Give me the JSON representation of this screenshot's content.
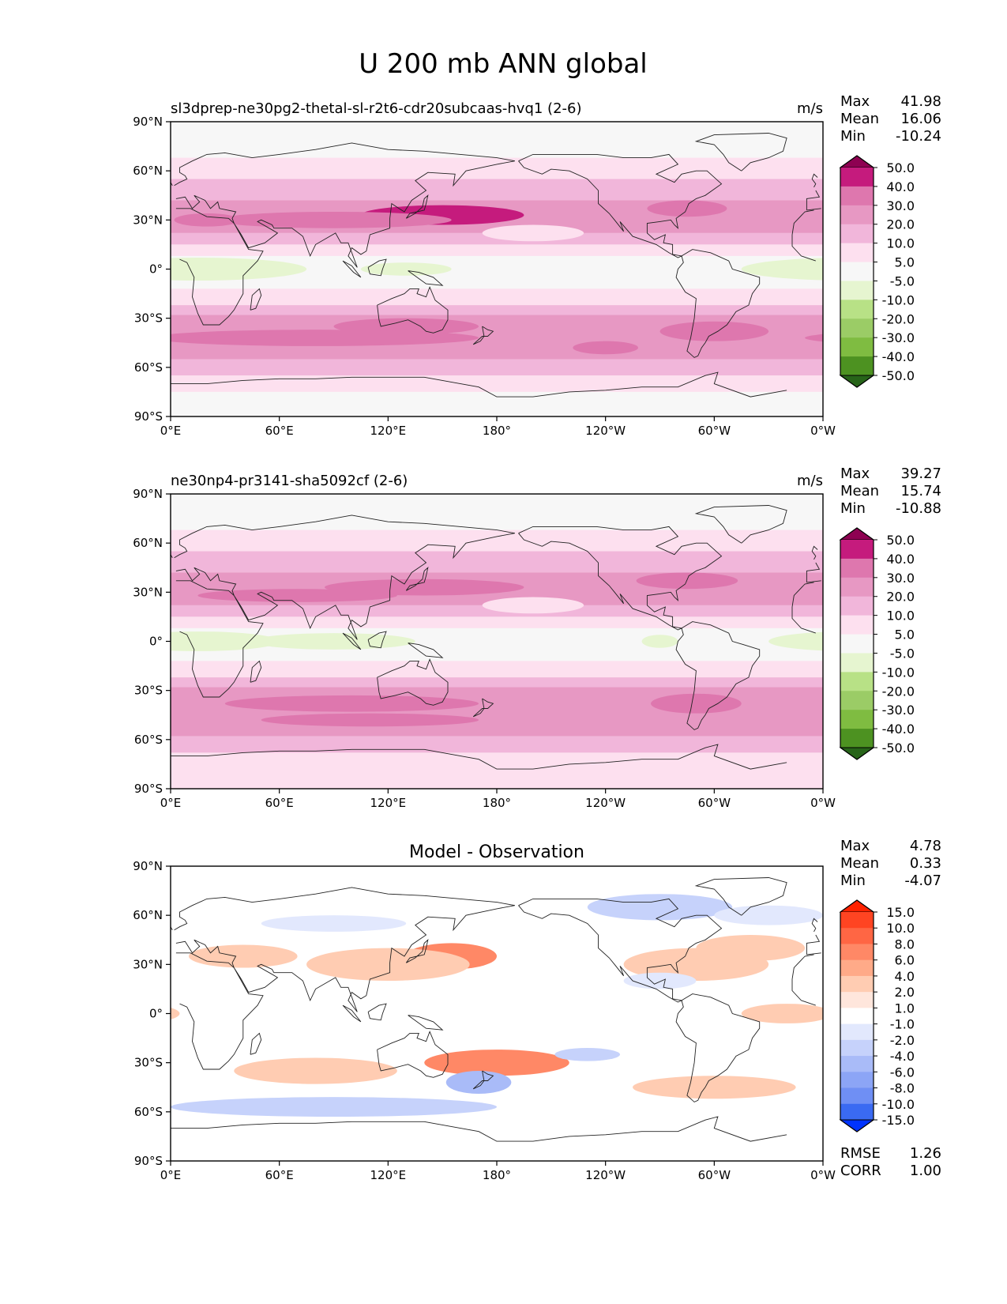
{
  "figure_title": "U 200 mb ANN global",
  "chart_data": [
    {
      "type": "heatmap",
      "title": "sl3dprep-ne30pg2-thetal-sl-r2t6-cdr20subcaas-hvq1 (2-6)",
      "units": "m/s",
      "stats": {
        "max_label": "Max",
        "max": "41.98",
        "mean_label": "Mean",
        "mean": "16.06",
        "min_label": "Min",
        "min": "-10.24"
      },
      "x_ticks": [
        "0°E",
        "60°E",
        "120°E",
        "180°",
        "120°W",
        "60°W",
        "0°W"
      ],
      "y_ticks": [
        "90°N",
        "60°N",
        "30°N",
        "0°",
        "30°S",
        "60°S",
        "90°S"
      ],
      "xlim": [
        0,
        360
      ],
      "ylim": [
        -90,
        90
      ],
      "colorbar": {
        "levels": [
          "50.0",
          "40.0",
          "30.0",
          "20.0",
          "10.0",
          "5.0",
          "-5.0",
          "-10.0",
          "-20.0",
          "-30.0",
          "-40.0",
          "-50.0"
        ],
        "colors": [
          "#8e0152",
          "#c51b7d",
          "#de77ae",
          "#e798c3",
          "#f1b6da",
          "#fde0ef",
          "#f7f7f7",
          "#e6f5d0",
          "#b8e186",
          "#9bcc66",
          "#7fbc41",
          "#4d9221",
          "#276419"
        ]
      },
      "field_features": [
        {
          "kind": "jet",
          "lon": 150,
          "lat": 33,
          "value": 41.98,
          "shade": 1
        },
        {
          "kind": "jet",
          "lon": 80,
          "lat": 30,
          "value": 32,
          "shade": 2
        },
        {
          "kind": "jet",
          "lon": 285,
          "lat": 37,
          "value": 35,
          "shade": 2
        },
        {
          "kind": "jet",
          "lon": 90,
          "lat": -38,
          "value": 33,
          "shade": 2
        },
        {
          "kind": "jet",
          "lon": 290,
          "lat": -40,
          "value": 33,
          "shade": 2
        },
        {
          "kind": "minimum",
          "lon": 15,
          "lat": 0,
          "value": -10.24,
          "shade": 8
        }
      ]
    },
    {
      "type": "heatmap",
      "title": "ne30np4-pr3141-sha5092cf (2-6)",
      "units": "m/s",
      "stats": {
        "max_label": "Max",
        "max": "39.27",
        "mean_label": "Mean",
        "mean": "15.74",
        "min_label": "Min",
        "min": "-10.88"
      },
      "x_ticks": [
        "0°E",
        "60°E",
        "120°E",
        "180°",
        "120°W",
        "60°W",
        "0°W"
      ],
      "y_ticks": [
        "90°N",
        "60°N",
        "30°N",
        "0°",
        "30°S",
        "60°S",
        "90°S"
      ],
      "xlim": [
        0,
        360
      ],
      "ylim": [
        -90,
        90
      ],
      "colorbar": {
        "levels": [
          "50.0",
          "40.0",
          "30.0",
          "20.0",
          "10.0",
          "5.0",
          "-5.0",
          "-10.0",
          "-20.0",
          "-30.0",
          "-40.0",
          "-50.0"
        ],
        "colors": [
          "#8e0152",
          "#c51b7d",
          "#de77ae",
          "#e798c3",
          "#f1b6da",
          "#fde0ef",
          "#f7f7f7",
          "#e6f5d0",
          "#b8e186",
          "#9bcc66",
          "#7fbc41",
          "#4d9221",
          "#276419"
        ]
      },
      "field_features": [
        {
          "kind": "jet",
          "lon": 140,
          "lat": 33,
          "value": 39.27,
          "shade": 2
        },
        {
          "kind": "jet",
          "lon": 70,
          "lat": 28,
          "value": 32,
          "shade": 2
        },
        {
          "kind": "jet",
          "lon": 285,
          "lat": 37,
          "value": 33,
          "shade": 2
        },
        {
          "kind": "jet",
          "lon": 100,
          "lat": -42,
          "value": 33,
          "shade": 2
        },
        {
          "kind": "jet",
          "lon": 290,
          "lat": -38,
          "value": 33,
          "shade": 2
        },
        {
          "kind": "minimum",
          "lon": 15,
          "lat": 0,
          "value": -10.88,
          "shade": 8
        }
      ]
    },
    {
      "type": "heatmap",
      "title": "Model - Observation",
      "units": "",
      "stats": {
        "max_label": "Max",
        "max": "4.78",
        "mean_label": "Mean",
        "mean": "0.33",
        "min_label": "Min",
        "min": "-4.07",
        "rmse_label": "RMSE",
        "rmse": "1.26",
        "corr_label": "CORR",
        "corr": "1.00"
      },
      "x_ticks": [
        "0°E",
        "60°E",
        "120°E",
        "180°",
        "120°W",
        "60°W",
        "0°W"
      ],
      "y_ticks": [
        "90°N",
        "60°N",
        "30°N",
        "0°",
        "30°S",
        "60°S",
        "90°S"
      ],
      "xlim": [
        0,
        360
      ],
      "ylim": [
        -90,
        90
      ],
      "colorbar": {
        "levels": [
          "15.0",
          "10.0",
          "8.0",
          "6.0",
          "4.0",
          "2.0",
          "1.0",
          "-1.0",
          "-2.0",
          "-4.0",
          "-6.0",
          "-8.0",
          "-10.0",
          "-15.0"
        ],
        "colors": [
          "#ff2200",
          "#ff4422",
          "#ff6644",
          "#ff8866",
          "#ffaa88",
          "#ffccb2",
          "#ffe6dc",
          "#ffffff",
          "#e2e8fd",
          "#c6d2fb",
          "#a9bbf8",
          "#8ca5f6",
          "#6f8ff4",
          "#3a6af2",
          "#0033ff"
        ]
      },
      "field_features": [
        {
          "kind": "positive",
          "lon": 155,
          "lat": 35,
          "value": 4.78
        },
        {
          "kind": "positive",
          "lon": 180,
          "lat": -30,
          "value": 4
        },
        {
          "kind": "positive",
          "lon": 285,
          "lat": 30,
          "value": 3
        },
        {
          "kind": "negative",
          "lon": 170,
          "lat": -42,
          "value": -4.07
        },
        {
          "kind": "negative",
          "lon": 90,
          "lat": -57,
          "value": -3
        },
        {
          "kind": "negative",
          "lon": 270,
          "lat": 65,
          "value": -3
        }
      ]
    }
  ]
}
